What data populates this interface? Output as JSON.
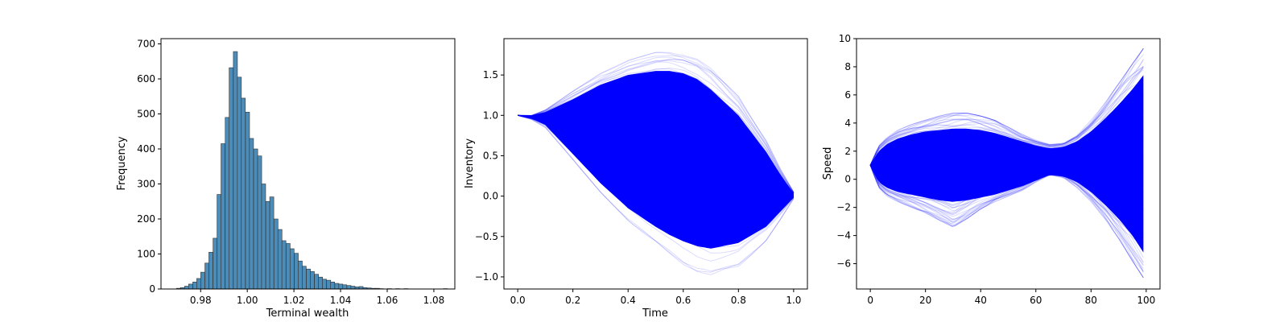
{
  "chart_data": [
    {
      "type": "bar",
      "subtype": "histogram",
      "title": "",
      "xlabel": "Terminal wealth",
      "ylabel": "Frequency",
      "xlim": [
        0.963,
        1.089
      ],
      "ylim": [
        0,
        715
      ],
      "xticks": [
        "0.98",
        "1.00",
        "1.02",
        "1.04",
        "1.06",
        "1.08"
      ],
      "yticks": [
        "0",
        "100",
        "200",
        "300",
        "400",
        "500",
        "600",
        "700"
      ],
      "bin_width": 0.00174,
      "bar_color": "#4c8cb8",
      "edge_color": "#333333",
      "bins": [
        {
          "x": 0.9705,
          "y": 2
        },
        {
          "x": 0.9722,
          "y": 4
        },
        {
          "x": 0.974,
          "y": 8
        },
        {
          "x": 0.9757,
          "y": 14
        },
        {
          "x": 0.9775,
          "y": 20
        },
        {
          "x": 0.9792,
          "y": 30
        },
        {
          "x": 0.9809,
          "y": 48
        },
        {
          "x": 0.9827,
          "y": 74
        },
        {
          "x": 0.9844,
          "y": 105
        },
        {
          "x": 0.9862,
          "y": 145
        },
        {
          "x": 0.9879,
          "y": 270
        },
        {
          "x": 0.9896,
          "y": 415
        },
        {
          "x": 0.9914,
          "y": 490
        },
        {
          "x": 0.9931,
          "y": 632
        },
        {
          "x": 0.9949,
          "y": 678
        },
        {
          "x": 0.9966,
          "y": 605
        },
        {
          "x": 0.9983,
          "y": 545
        },
        {
          "x": 1.0001,
          "y": 505
        },
        {
          "x": 1.0018,
          "y": 430
        },
        {
          "x": 1.0036,
          "y": 400
        },
        {
          "x": 1.0053,
          "y": 380
        },
        {
          "x": 1.007,
          "y": 300
        },
        {
          "x": 1.0088,
          "y": 250
        },
        {
          "x": 1.0105,
          "y": 263
        },
        {
          "x": 1.0123,
          "y": 200
        },
        {
          "x": 1.014,
          "y": 170
        },
        {
          "x": 1.0157,
          "y": 138
        },
        {
          "x": 1.0175,
          "y": 130
        },
        {
          "x": 1.0192,
          "y": 115
        },
        {
          "x": 1.021,
          "y": 102
        },
        {
          "x": 1.0227,
          "y": 80
        },
        {
          "x": 1.0244,
          "y": 65
        },
        {
          "x": 1.0262,
          "y": 57
        },
        {
          "x": 1.0279,
          "y": 50
        },
        {
          "x": 1.0297,
          "y": 42
        },
        {
          "x": 1.0314,
          "y": 34
        },
        {
          "x": 1.0331,
          "y": 28
        },
        {
          "x": 1.0349,
          "y": 25
        },
        {
          "x": 1.0366,
          "y": 20
        },
        {
          "x": 1.0384,
          "y": 16
        },
        {
          "x": 1.0401,
          "y": 14
        },
        {
          "x": 1.0418,
          "y": 12
        },
        {
          "x": 1.0436,
          "y": 10
        },
        {
          "x": 1.0453,
          "y": 8
        },
        {
          "x": 1.0471,
          "y": 6
        },
        {
          "x": 1.0488,
          "y": 7
        },
        {
          "x": 1.0505,
          "y": 4
        },
        {
          "x": 1.0523,
          "y": 3
        },
        {
          "x": 1.054,
          "y": 2
        },
        {
          "x": 1.0558,
          "y": 2
        },
        {
          "x": 1.0575,
          "y": 1
        },
        {
          "x": 1.061,
          "y": 1
        },
        {
          "x": 1.0645,
          "y": 1
        },
        {
          "x": 1.068,
          "y": 1
        },
        {
          "x": 1.085,
          "y": 1
        }
      ]
    },
    {
      "type": "line",
      "subtype": "sample-path-fan",
      "title": "",
      "xlabel": "Time",
      "ylabel": "Inventory",
      "xlim": [
        -0.05,
        1.05
      ],
      "ylim": [
        -1.15,
        1.95
      ],
      "xticks": [
        "0.0",
        "0.2",
        "0.4",
        "0.6",
        "0.8",
        "1.0"
      ],
      "yticks": [
        "−1.0",
        "−0.5",
        "0.0",
        "0.5",
        "1.0",
        "1.5"
      ],
      "line_color": "#0000ff",
      "envelope": {
        "x": [
          0.0,
          0.05,
          0.1,
          0.2,
          0.3,
          0.4,
          0.5,
          0.55,
          0.6,
          0.65,
          0.7,
          0.8,
          0.9,
          0.95,
          1.0
        ],
        "upper": [
          1.0,
          1.0,
          1.07,
          1.3,
          1.52,
          1.68,
          1.78,
          1.8,
          1.78,
          1.72,
          1.6,
          1.25,
          0.7,
          0.35,
          0.05
        ],
        "lower": [
          1.0,
          0.95,
          0.85,
          0.45,
          0.05,
          -0.3,
          -0.58,
          -0.72,
          -0.86,
          -0.96,
          -1.0,
          -0.88,
          -0.55,
          -0.3,
          -0.03
        ],
        "core_upper": [
          1.0,
          1.0,
          1.04,
          1.2,
          1.38,
          1.5,
          1.55,
          1.55,
          1.52,
          1.45,
          1.32,
          1.0,
          0.55,
          0.28,
          0.03
        ],
        "core_lower": [
          1.0,
          0.96,
          0.88,
          0.52,
          0.16,
          -0.15,
          -0.38,
          -0.48,
          -0.56,
          -0.62,
          -0.65,
          -0.58,
          -0.38,
          -0.2,
          -0.02
        ]
      }
    },
    {
      "type": "line",
      "subtype": "sample-path-fan",
      "title": "",
      "xlabel": "",
      "ylabel": "Speed",
      "xlim": [
        -5,
        105
      ],
      "ylim": [
        -7.8,
        10.0
      ],
      "xticks": [
        "0",
        "20",
        "40",
        "60",
        "80",
        "100"
      ],
      "yticks": [
        "−6",
        "−4",
        "−2",
        "0",
        "2",
        "4",
        "6",
        "8",
        "10"
      ],
      "line_color": "#0000ff",
      "envelope": {
        "x": [
          0,
          3,
          6,
          10,
          15,
          20,
          25,
          30,
          35,
          40,
          45,
          50,
          55,
          60,
          65,
          70,
          75,
          80,
          85,
          90,
          95,
          99
        ],
        "upper": [
          1.0,
          2.4,
          3.0,
          3.5,
          3.9,
          4.2,
          4.5,
          4.7,
          4.7,
          4.5,
          4.2,
          3.7,
          3.2,
          2.8,
          2.5,
          2.6,
          3.2,
          4.2,
          5.4,
          6.8,
          8.2,
          9.3
        ],
        "lower": [
          1.0,
          -0.6,
          -1.2,
          -1.6,
          -2.0,
          -2.4,
          -2.9,
          -3.4,
          -2.8,
          -2.1,
          -1.6,
          -1.2,
          -0.8,
          -0.2,
          0.3,
          0.1,
          -0.6,
          -1.6,
          -2.8,
          -4.2,
          -5.8,
          -7.0
        ],
        "core_upper": [
          1.0,
          2.0,
          2.5,
          2.9,
          3.2,
          3.4,
          3.5,
          3.6,
          3.6,
          3.5,
          3.3,
          3.0,
          2.7,
          2.4,
          2.2,
          2.3,
          2.7,
          3.4,
          4.3,
          5.3,
          6.4,
          7.4
        ],
        "core_lower": [
          1.0,
          -0.2,
          -0.6,
          -0.9,
          -1.1,
          -1.3,
          -1.5,
          -1.6,
          -1.5,
          -1.3,
          -1.1,
          -0.8,
          -0.5,
          -0.1,
          0.3,
          0.2,
          -0.2,
          -0.9,
          -1.8,
          -2.8,
          -4.0,
          -5.2
        ]
      }
    }
  ]
}
